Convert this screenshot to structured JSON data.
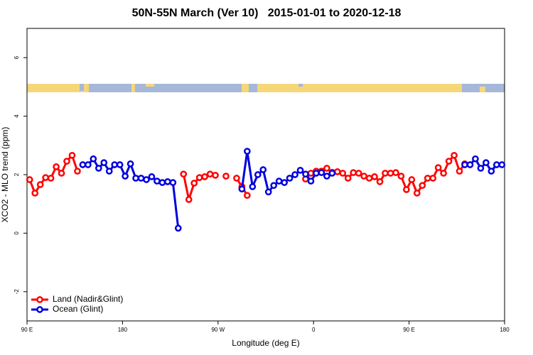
{
  "chart_data": {
    "type": "line",
    "title": "50N-55N March (Ver 10)   2015-01-01 to 2020-12-18",
    "xlabel": "Longitude (deg E)",
    "ylabel": "XCO2 - MLO trend (ppm)",
    "xlim": [
      90,
      540
    ],
    "ylim": [
      -3,
      7
    ],
    "xticks": [
      {
        "value": 90,
        "label": "90 E"
      },
      180,
      {
        "value": 270,
        "label": "90 W"
      },
      {
        "value": 360,
        "label": "0"
      },
      {
        "value": 450,
        "label": "90 E"
      },
      {
        "value": 540,
        "label": "180"
      }
    ],
    "yticks": [
      -2,
      0,
      2,
      4,
      6
    ],
    "grid": false,
    "legend": "bottom-left",
    "x": [
      92.5,
      97.5,
      102.5,
      107.5,
      112.5,
      117.5,
      122.5,
      127.5,
      132.5,
      137.5,
      142.5,
      147.5,
      152.5,
      157.5,
      162.5,
      167.5,
      172.5,
      177.5,
      182.5,
      187.5,
      192.5,
      197.5,
      202.5,
      207.5,
      212.5,
      217.5,
      222.5,
      227.5,
      232.5,
      237.5,
      242.5,
      247.5,
      252.5,
      257.5,
      262.5,
      267.5,
      272.5,
      277.5,
      282.5,
      287.5,
      292.5,
      297.5,
      302.5,
      307.5,
      312.5,
      317.5,
      322.5,
      327.5,
      332.5,
      337.5,
      342.5,
      347.5,
      352.5,
      357.5,
      362.5,
      367.5,
      372.5,
      377.5,
      382.5,
      387.5,
      392.5,
      397.5,
      402.5,
      407.5,
      412.5,
      417.5,
      422.5,
      427.5,
      432.5,
      437.5,
      442.5,
      447.5,
      452.5,
      457.5,
      462.5,
      467.5,
      472.5,
      477.5,
      482.5,
      487.5,
      492.5,
      497.5,
      502.5,
      507.5,
      512.5,
      517.5,
      522.5,
      527.5,
      532.5,
      537.5
    ],
    "series": [
      {
        "name": "Land (Nadir&Glint)",
        "color": "#ff0000",
        "values": [
          1.83,
          1.37,
          1.66,
          1.9,
          1.88,
          2.27,
          2.05,
          2.46,
          2.66,
          2.12,
          null,
          null,
          null,
          null,
          null,
          null,
          null,
          null,
          null,
          null,
          null,
          null,
          null,
          null,
          null,
          null,
          null,
          null,
          null,
          2.02,
          1.15,
          1.71,
          1.9,
          1.93,
          2.02,
          1.98,
          null,
          1.95,
          null,
          1.88,
          1.59,
          1.29,
          null,
          null,
          null,
          null,
          null,
          null,
          null,
          null,
          null,
          null,
          1.85,
          2.05,
          2.12,
          2.12,
          2.22,
          2.08,
          2.1,
          2.05,
          1.88,
          2.07,
          2.05,
          1.95,
          1.88,
          1.93,
          1.76,
          2.05,
          2.05,
          2.07,
          1.95,
          1.49,
          1.83,
          1.37,
          1.63,
          1.88,
          1.88,
          2.24,
          2.05,
          2.46,
          2.66,
          2.12,
          2.37,
          null,
          null,
          null,
          null,
          null,
          null,
          null
        ]
      },
      {
        "name": "Ocean (Glint)",
        "color": "#0000dd",
        "values": [
          null,
          null,
          null,
          null,
          null,
          null,
          null,
          null,
          null,
          null,
          2.34,
          2.34,
          2.54,
          2.22,
          2.41,
          2.12,
          2.34,
          2.34,
          1.95,
          2.37,
          1.88,
          1.88,
          1.83,
          1.93,
          1.78,
          1.73,
          1.76,
          1.73,
          0.17,
          null,
          null,
          null,
          null,
          null,
          null,
          null,
          null,
          null,
          null,
          null,
          1.51,
          2.8,
          1.59,
          2.0,
          2.17,
          1.41,
          1.63,
          1.78,
          1.73,
          1.88,
          2.0,
          2.15,
          2.02,
          1.78,
          2.05,
          2.07,
          1.95,
          2.05,
          null,
          null,
          null,
          null,
          null,
          null,
          null,
          null,
          null,
          null,
          null,
          null,
          null,
          null,
          null,
          null,
          null,
          null,
          null,
          null,
          null,
          null,
          null,
          null,
          2.34,
          2.34,
          2.54,
          2.22,
          2.41,
          2.12,
          2.34,
          2.34
        ]
      }
    ]
  }
}
